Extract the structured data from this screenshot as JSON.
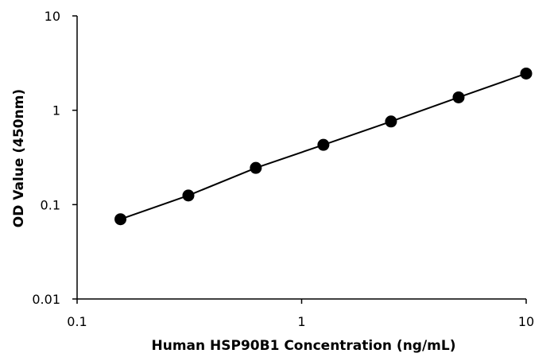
{
  "chart_data": {
    "type": "line",
    "title": "",
    "xlabel": "Human HSP90B1 Concentration (ng/mL)",
    "ylabel": "OD Value (450nm)",
    "xscale": "log",
    "yscale": "log",
    "xlim": [
      0.1,
      10
    ],
    "ylim": [
      0.01,
      10
    ],
    "x_ticks": [
      0.1,
      1,
      10
    ],
    "x_tick_labels": [
      "0.1",
      "1",
      "10"
    ],
    "y_ticks": [
      0.01,
      0.1,
      1,
      10
    ],
    "y_tick_labels": [
      "0.01",
      "0.1",
      "1",
      "10"
    ],
    "grid": false,
    "legend": "none",
    "series": [
      {
        "x": [
          0.156,
          0.313,
          0.625,
          1.25,
          2.5,
          5,
          10
        ],
        "y": [
          0.07,
          0.125,
          0.245,
          0.43,
          0.76,
          1.37,
          2.45
        ],
        "color": "#000000",
        "marker": "circle"
      }
    ]
  }
}
